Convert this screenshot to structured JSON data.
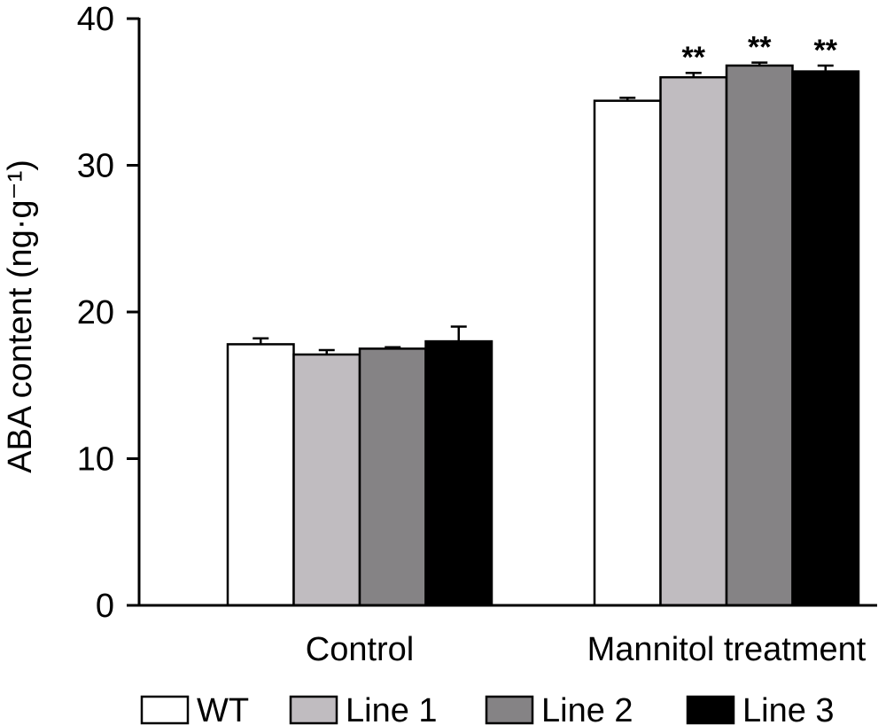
{
  "chart_data": {
    "type": "bar",
    "title": "",
    "xlabel": "",
    "ylabel": "ABA content (ng·g⁻¹)",
    "ylim": [
      0,
      40
    ],
    "yticks": [
      0,
      10,
      20,
      30,
      40
    ],
    "grid": false,
    "legend_position": "bottom",
    "categories": [
      "Control",
      "Mannitol treatment"
    ],
    "series": [
      {
        "name": "WT",
        "color": "#ffffff",
        "values": [
          17.8,
          34.4
        ],
        "errors": [
          0.4,
          0.2
        ],
        "annotations": [
          "",
          ""
        ]
      },
      {
        "name": "Line 1",
        "color": "#c0bcc0",
        "values": [
          17.1,
          36.0
        ],
        "errors": [
          0.3,
          0.3
        ],
        "annotations": [
          "",
          "**"
        ]
      },
      {
        "name": "Line 2",
        "color": "#858385",
        "values": [
          17.5,
          36.8
        ],
        "errors": [
          0.1,
          0.2
        ],
        "annotations": [
          "",
          "**"
        ]
      },
      {
        "name": "Line 3",
        "color": "#000000",
        "values": [
          18.0,
          36.4
        ],
        "errors": [
          1.0,
          0.4
        ],
        "annotations": [
          "",
          "**"
        ]
      }
    ]
  }
}
